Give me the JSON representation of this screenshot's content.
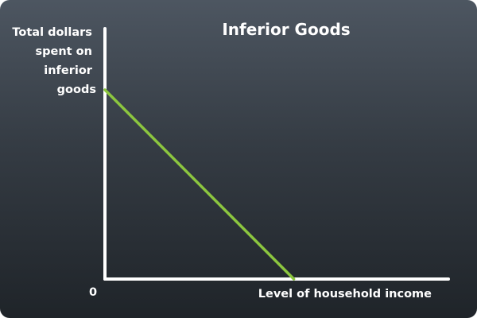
{
  "chart_data": {
    "type": "line",
    "title": "Inferior Goods",
    "ylabel_lines": [
      "Total dollars",
      "spent on",
      "inferior",
      "goods"
    ],
    "xlabel": "Level of household income",
    "origin_label": "0",
    "xlim": [
      0,
      1
    ],
    "ylim": [
      0,
      1
    ],
    "grid": false,
    "series": [
      {
        "x": [
          0,
          0.55
        ],
        "y": [
          1,
          0
        ]
      }
    ],
    "colors": {
      "axis": "#ffffff",
      "line": "#8cc63f"
    }
  }
}
